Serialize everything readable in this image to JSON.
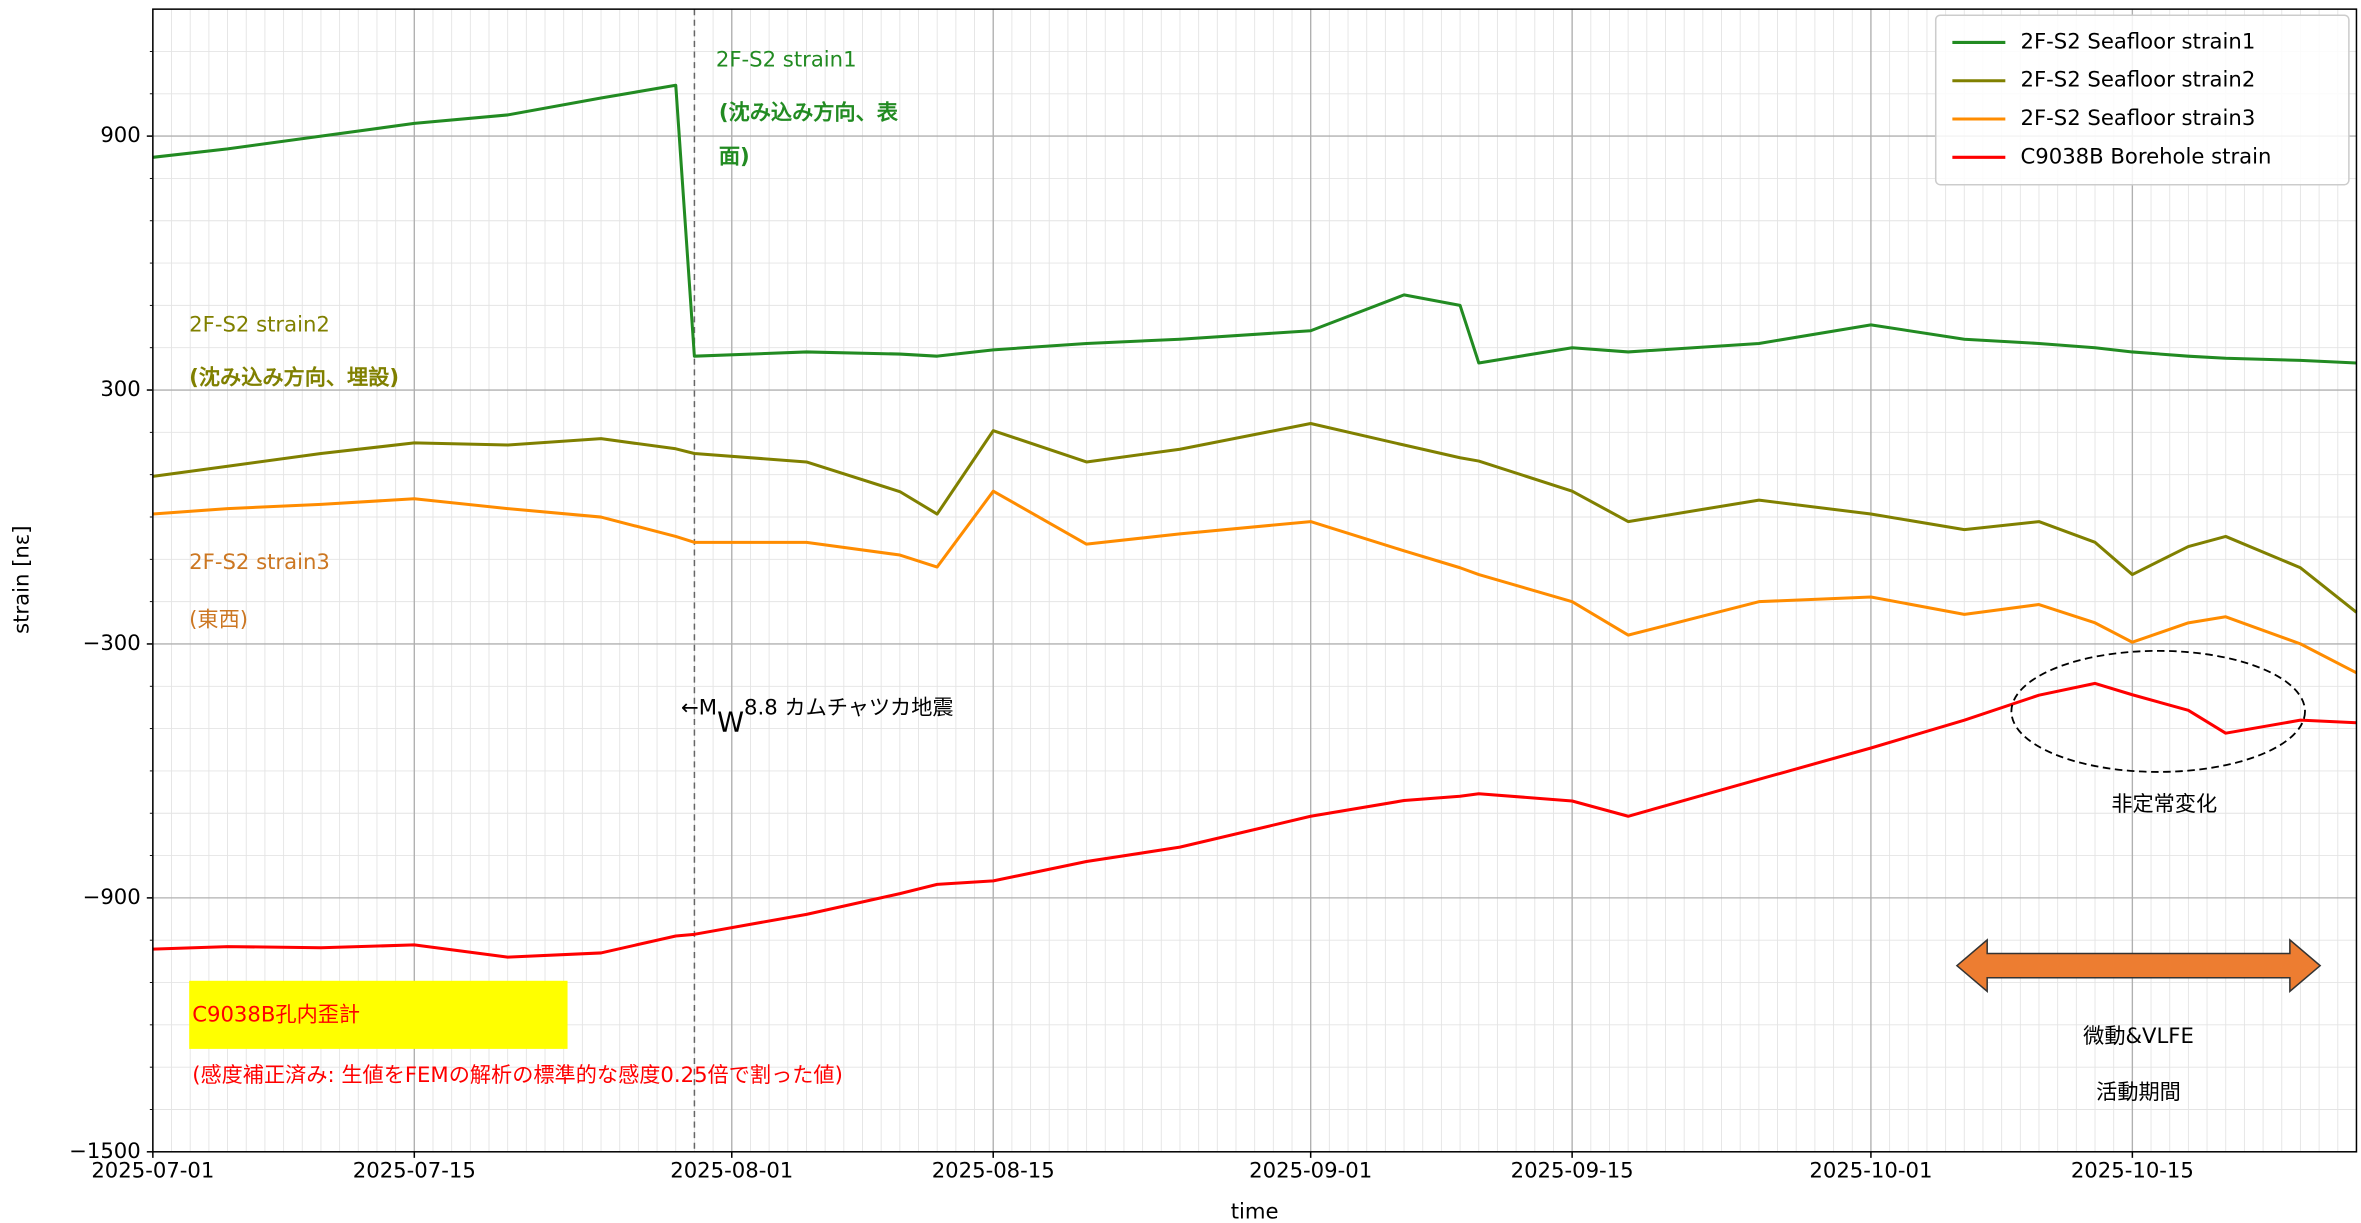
{
  "chart_data": {
    "type": "line",
    "xlabel": "time",
    "ylabel": "strain [nε]",
    "x": [
      "2025-07-01",
      "2025-07-05",
      "2025-07-10",
      "2025-07-15",
      "2025-07-20",
      "2025-07-25",
      "2025-07-29",
      "2025-07-30",
      "2025-08-05",
      "2025-08-10",
      "2025-08-12",
      "2025-08-15",
      "2025-08-20",
      "2025-08-25",
      "2025-09-01",
      "2025-09-06",
      "2025-09-09",
      "2025-09-10",
      "2025-09-15",
      "2025-09-18",
      "2025-09-25",
      "2025-10-01",
      "2025-10-06",
      "2025-10-10",
      "2025-10-13",
      "2025-10-15",
      "2025-10-18",
      "2025-10-20",
      "2025-10-24",
      "2025-10-27"
    ],
    "series": [
      {
        "name": "2F-S2 Seafloor strain1",
        "color": "#228b22",
        "values": [
          850,
          870,
          900,
          930,
          950,
          990,
          1020,
          380,
          390,
          385,
          380,
          395,
          410,
          420,
          440,
          525,
          500,
          364,
          400,
          390,
          410,
          454,
          420,
          410,
          400,
          390,
          380,
          375,
          370,
          364
        ]
      },
      {
        "name": "2F-S2 Seafloor strain2",
        "color": "#808000",
        "values": [
          96,
          120,
          150,
          175,
          170,
          185,
          161,
          150,
          130,
          60,
          7,
          204,
          130,
          160,
          221,
          170,
          140,
          132,
          61,
          -11,
          40,
          7,
          -30,
          -11,
          -60,
          -136,
          -70,
          -46,
          -120,
          -225
        ]
      },
      {
        "name": "2F-S2 Seafloor strain3",
        "color": "#ff8c00",
        "values": [
          7,
          20,
          30,
          43,
          20,
          0,
          -46,
          -60,
          -60,
          -90,
          -118,
          61,
          -64,
          -40,
          -11,
          -80,
          -120,
          -136,
          -200,
          -279,
          -200,
          -189,
          -230,
          -207,
          -250,
          -296,
          -250,
          -236,
          -300,
          -368
        ]
      },
      {
        "name": "C9038B Borehole strain",
        "color": "#ff0000",
        "values": [
          -1021,
          -1015,
          -1018,
          -1011,
          -1040,
          -1030,
          -990,
          -986,
          -939,
          -890,
          -868,
          -860,
          -814,
          -780,
          -707,
          -670,
          -660,
          -654,
          -671,
          -707,
          -620,
          -546,
          -480,
          -421,
          -393,
          -420,
          -457,
          -511,
          -480,
          -486
        ]
      }
    ],
    "xlim": [
      "2025-07-01",
      "2025-10-27"
    ],
    "xticks": [
      "2025-07-01",
      "2025-07-15",
      "2025-08-01",
      "2025-08-15",
      "2025-09-01",
      "2025-09-15",
      "2025-10-01",
      "2025-10-15"
    ],
    "ylim": [
      -1500,
      1200
    ],
    "yticks": [
      {
        "value": -1500,
        "label": "−1500"
      },
      {
        "value": -900,
        "label": "−900"
      },
      {
        "value": -300,
        "label": "−300"
      },
      300,
      900
    ],
    "yminor": [
      -1400,
      -1300,
      -1200,
      -1100,
      -1000,
      -800,
      -700,
      -600,
      -500,
      -400,
      -200,
      -100,
      0,
      100,
      200,
      400,
      500,
      600,
      700,
      800,
      1000,
      1100
    ],
    "grid": true,
    "legend": "upper right",
    "annotations": {
      "strain1": [
        "2F-S2 strain1",
        "(沈み込み方向、表",
        "面)"
      ],
      "strain2": [
        "2F-S2 strain2",
        "(沈み込み方向、埋設)"
      ],
      "strain3": [
        "2F-S2 strain3",
        "(東西)"
      ],
      "quake": [
        "←M",
        "W",
        "8.8 カムチャツカ地震"
      ],
      "transient": "非定常変化",
      "borehole": [
        "C9038B孔内歪計",
        "(感度補正済み: 生値をFEMの解析の標準的な感度0.25倍で割った値)"
      ],
      "activity": [
        "微動&VLFE",
        "活動期間"
      ]
    }
  }
}
